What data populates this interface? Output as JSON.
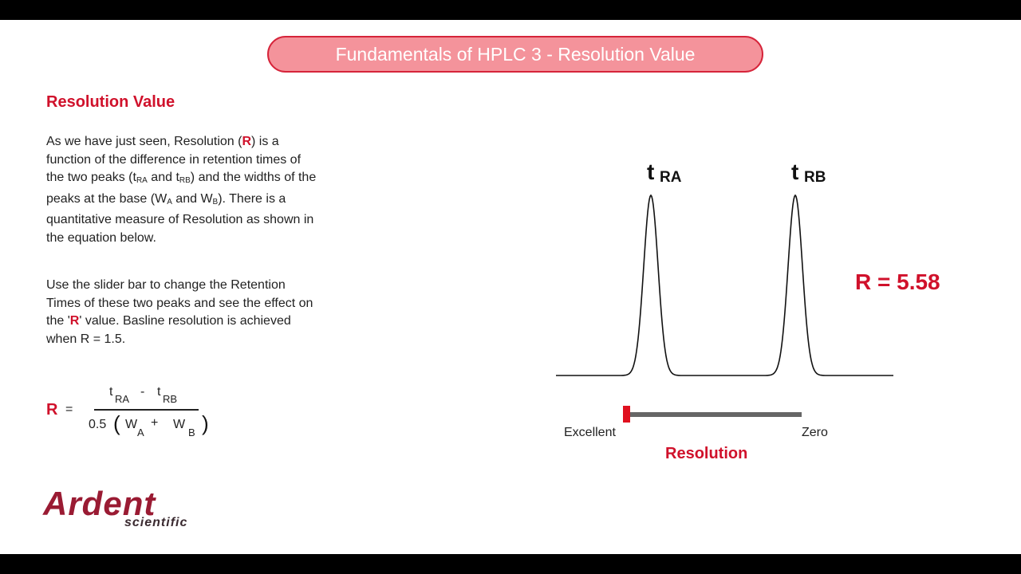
{
  "header": {
    "title": "Fundamentals of HPLC 3 - Resolution Value"
  },
  "section": {
    "heading": "Resolution Value",
    "paragraph1": [
      "As we have just seen, Resolution (",
      "R",
      ") is a function of the difference in retention times of the two peaks (t",
      "RA",
      " and t",
      "RB",
      ") and the widths of the peaks at the base (W",
      "A",
      " and W",
      "B",
      "). There is a quantitative measure of Resolution as shown in the equation below."
    ],
    "paragraph2": [
      "Use the slider bar to change the Retention Times of these two peaks and see the effect on the '",
      "R",
      "' value. Basline resolution is achieved when R = 1.5."
    ]
  },
  "formula": {
    "lhs": "R",
    "equals": "=",
    "numerator": [
      "t",
      "RA",
      "-",
      "t",
      "RB"
    ],
    "denominator": [
      "0.5",
      "(",
      "W",
      "A",
      "+",
      "W",
      "B",
      ")"
    ]
  },
  "chromatogram": {
    "peaks": [
      {
        "label": "t",
        "subscript": "RA"
      },
      {
        "label": "t",
        "subscript": "RB"
      }
    ],
    "result": "R = 5.58"
  },
  "slider": {
    "left_label": "Excellent",
    "right_label": "Zero",
    "caption": "Resolution"
  },
  "logo": {
    "name": "Ardent",
    "tagline": "scientific"
  }
}
